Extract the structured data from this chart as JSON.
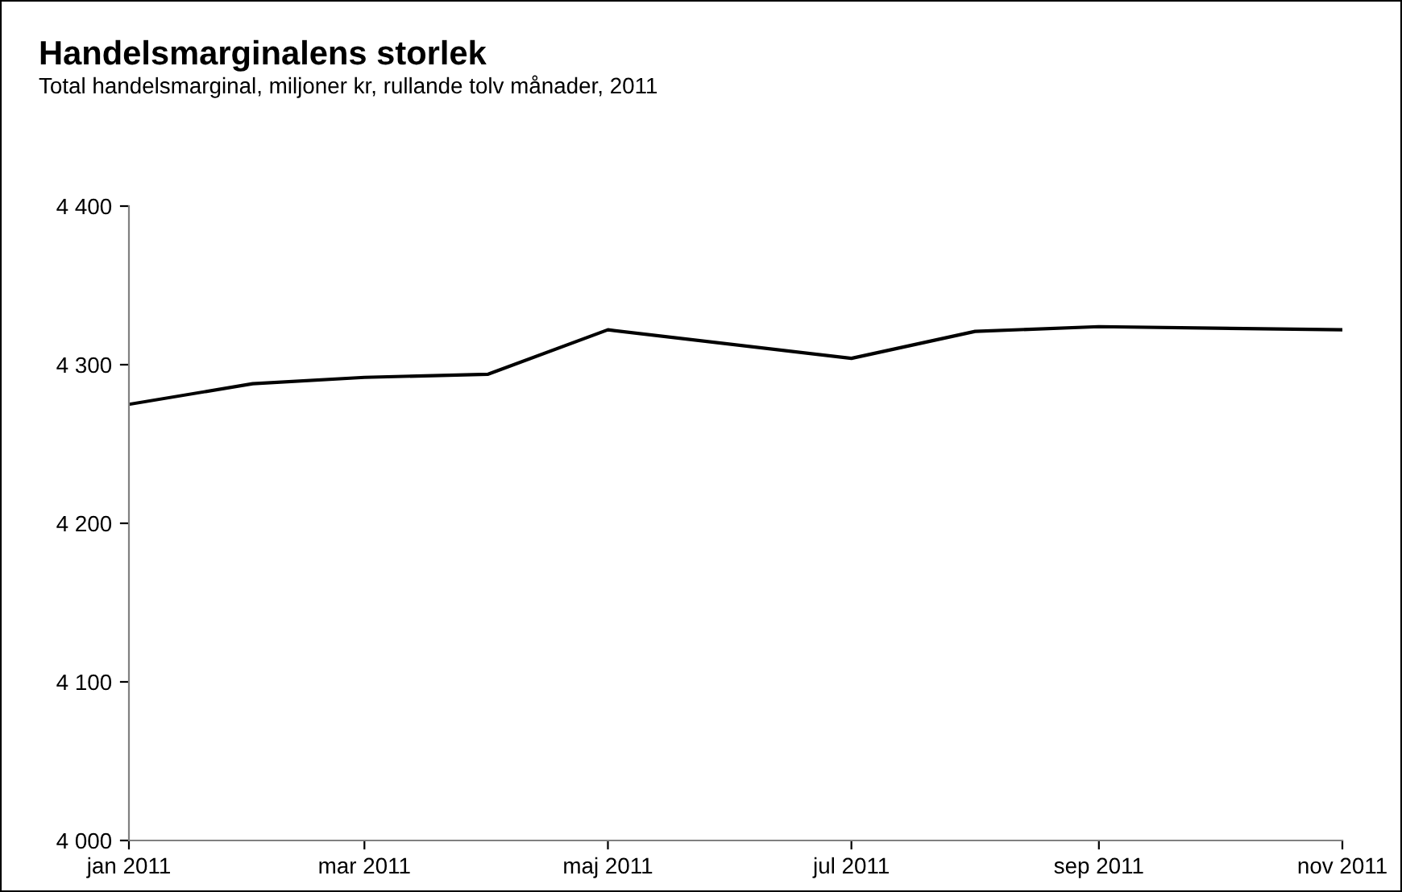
{
  "chart_data": {
    "type": "line",
    "title": "Handelsmarginalens storlek",
    "subtitle": "Total handelsmarginal, miljoner kr, rullande tolv månader, 2011",
    "x": [
      "2011-01",
      "2011-02",
      "2011-03",
      "2011-04",
      "2011-05",
      "2011-07",
      "2011-08",
      "2011-09",
      "2011-11"
    ],
    "series": [
      {
        "color": "#000000",
        "values": [
          4275,
          4288,
          4292,
          4294,
          4322,
          4304,
          4321,
          4324,
          4322
        ]
      }
    ],
    "xlim": [
      "2011-01",
      "2011-11"
    ],
    "xticks": [
      {
        "value": "2011-01",
        "label": "jan 2011"
      },
      {
        "value": "2011-03",
        "label": "mar 2011"
      },
      {
        "value": "2011-05",
        "label": "maj 2011"
      },
      {
        "value": "2011-07",
        "label": "jul 2011"
      },
      {
        "value": "2011-09",
        "label": "sep 2011"
      },
      {
        "value": "2011-11",
        "label": "nov 2011"
      }
    ],
    "ylim": [
      4000,
      4400
    ],
    "yticks": [
      {
        "value": 4000,
        "label": "4 000"
      },
      {
        "value": 4100,
        "label": "4 100"
      },
      {
        "value": 4200,
        "label": "4 200"
      },
      {
        "value": 4300,
        "label": "4 300"
      },
      {
        "value": 4400,
        "label": "4 400"
      }
    ],
    "grid": false,
    "marker": "none",
    "line_style": "solid"
  }
}
